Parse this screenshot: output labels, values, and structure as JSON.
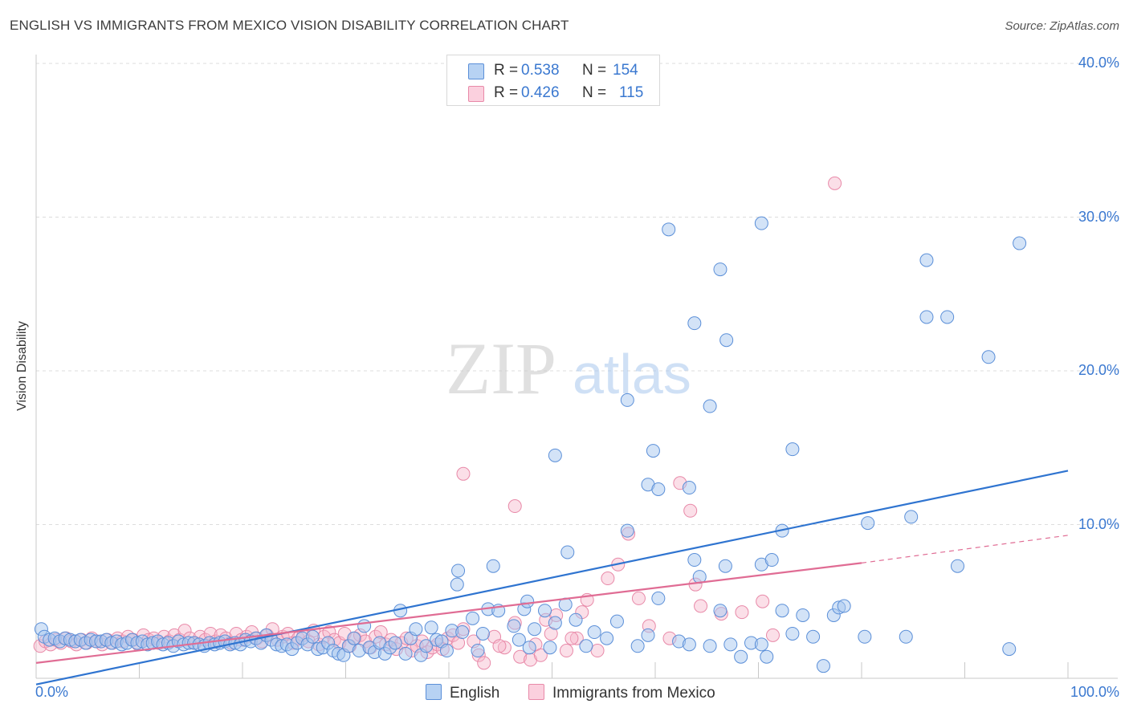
{
  "header": {
    "title": "ENGLISH VS IMMIGRANTS FROM MEXICO VISION DISABILITY CORRELATION CHART",
    "source": "Source: ZipAtlas.com"
  },
  "watermark": {
    "zip": "ZIP",
    "atlas": "atlas"
  },
  "legend_top": [
    {
      "r_label": "R =",
      "r_value": "0.538",
      "n_label": "N =",
      "n_value": "154"
    },
    {
      "r_label": "R =",
      "r_value": "0.426",
      "n_label": "N =",
      "n_value": "115"
    }
  ],
  "colors": {
    "english_fill": "#a8c8f0",
    "english_stroke": "#5b8fd8",
    "english_line": "#2f74d0",
    "mexico_fill": "#f7b8cc",
    "mexico_stroke": "#e889a8",
    "mexico_line": "#e06c94",
    "tick_text": "#3a78d0",
    "grid": "#dddddd"
  },
  "chart_data": {
    "type": "scatter",
    "title": "ENGLISH VS IMMIGRANTS FROM MEXICO VISION DISABILITY CORRELATION CHART",
    "xlabel": "",
    "ylabel": "Vision Disability",
    "xlim": [
      0,
      100
    ],
    "ylim": [
      0,
      40
    ],
    "x_tick_labels": [
      "0.0%",
      "100.0%"
    ],
    "y_ticks": [
      10,
      20,
      30,
      40
    ],
    "y_tick_labels": [
      "10.0%",
      "20.0%",
      "30.0%",
      "40.0%"
    ],
    "grid": true,
    "legend_position": "bottom",
    "series": [
      {
        "name": "English",
        "stats": {
          "R": 0.538,
          "N": 154
        },
        "trend": {
          "x0": 0,
          "y0": -0.4,
          "x1": 100,
          "y1": 13.5
        },
        "points": [
          [
            0.5,
            3.2
          ],
          [
            0.8,
            2.7
          ],
          [
            1.3,
            2.5
          ],
          [
            1.8,
            2.6
          ],
          [
            2.3,
            2.4
          ],
          [
            2.8,
            2.6
          ],
          [
            3.3,
            2.5
          ],
          [
            3.8,
            2.4
          ],
          [
            4.3,
            2.5
          ],
          [
            4.8,
            2.3
          ],
          [
            5.3,
            2.5
          ],
          [
            5.8,
            2.4
          ],
          [
            6.3,
            2.4
          ],
          [
            6.8,
            2.5
          ],
          [
            7.3,
            2.3
          ],
          [
            7.8,
            2.4
          ],
          [
            8.3,
            2.2
          ],
          [
            8.8,
            2.3
          ],
          [
            9.3,
            2.5
          ],
          [
            9.8,
            2.3
          ],
          [
            10.3,
            2.4
          ],
          [
            10.8,
            2.2
          ],
          [
            11.3,
            2.3
          ],
          [
            11.8,
            2.4
          ],
          [
            12.3,
            2.2
          ],
          [
            12.8,
            2.3
          ],
          [
            13.3,
            2.1
          ],
          [
            13.8,
            2.4
          ],
          [
            14.3,
            2.2
          ],
          [
            14.8,
            2.3
          ],
          [
            15.3,
            2.3
          ],
          [
            15.8,
            2.2
          ],
          [
            16.3,
            2.1
          ],
          [
            16.8,
            2.3
          ],
          [
            17.3,
            2.2
          ],
          [
            17.8,
            2.3
          ],
          [
            18.3,
            2.4
          ],
          [
            18.8,
            2.2
          ],
          [
            19.3,
            2.3
          ],
          [
            19.8,
            2.2
          ],
          [
            20.3,
            2.5
          ],
          [
            20.8,
            2.4
          ],
          [
            21.3,
            2.6
          ],
          [
            21.8,
            2.3
          ],
          [
            22.3,
            2.8
          ],
          [
            22.8,
            2.5
          ],
          [
            23.3,
            2.2
          ],
          [
            23.8,
            2.1
          ],
          [
            24.3,
            2.2
          ],
          [
            24.8,
            1.9
          ],
          [
            25.3,
            2.3
          ],
          [
            25.8,
            2.6
          ],
          [
            26.3,
            2.2
          ],
          [
            26.8,
            2.7
          ],
          [
            27.3,
            1.9
          ],
          [
            27.8,
            2.0
          ],
          [
            28.3,
            2.3
          ],
          [
            28.8,
            1.8
          ],
          [
            29.3,
            1.6
          ],
          [
            29.8,
            1.5
          ],
          [
            30.3,
            2.1
          ],
          [
            30.8,
            2.6
          ],
          [
            31.3,
            1.8
          ],
          [
            31.8,
            3.4
          ],
          [
            32.3,
            2.0
          ],
          [
            32.8,
            1.7
          ],
          [
            33.3,
            2.3
          ],
          [
            33.8,
            1.6
          ],
          [
            34.3,
            2.0
          ],
          [
            34.8,
            2.3
          ],
          [
            35.3,
            4.4
          ],
          [
            35.8,
            1.6
          ],
          [
            36.3,
            2.6
          ],
          [
            36.8,
            3.2
          ],
          [
            37.3,
            1.5
          ],
          [
            37.8,
            2.1
          ],
          [
            38.3,
            3.3
          ],
          [
            38.8,
            2.5
          ],
          [
            39.3,
            2.4
          ],
          [
            39.8,
            1.8
          ],
          [
            40.3,
            3.1
          ],
          [
            40.8,
            6.1
          ],
          [
            40.9,
            7.0
          ],
          [
            41.3,
            3.0
          ],
          [
            42.3,
            3.9
          ],
          [
            42.8,
            1.8
          ],
          [
            43.3,
            2.9
          ],
          [
            43.8,
            4.5
          ],
          [
            44.3,
            7.3
          ],
          [
            44.8,
            4.4
          ],
          [
            46.3,
            3.4
          ],
          [
            46.8,
            2.5
          ],
          [
            47.3,
            4.5
          ],
          [
            47.8,
            2.0
          ],
          [
            47.6,
            5.0
          ],
          [
            48.3,
            3.2
          ],
          [
            49.3,
            4.4
          ],
          [
            49.8,
            2.0
          ],
          [
            50.3,
            3.6
          ],
          [
            51.3,
            4.8
          ],
          [
            51.5,
            8.2
          ],
          [
            52.3,
            3.8
          ],
          [
            53.3,
            2.1
          ],
          [
            54.1,
            3.0
          ],
          [
            55.3,
            2.6
          ],
          [
            56.3,
            3.7
          ],
          [
            57.3,
            9.6
          ],
          [
            58.3,
            2.1
          ],
          [
            59.3,
            2.8
          ],
          [
            60.3,
            5.2
          ],
          [
            62.3,
            2.4
          ],
          [
            63.3,
            2.2
          ],
          [
            63.8,
            7.7
          ],
          [
            64.3,
            6.6
          ],
          [
            65.3,
            2.1
          ],
          [
            66.3,
            4.4
          ],
          [
            66.8,
            7.3
          ],
          [
            67.3,
            2.2
          ],
          [
            68.3,
            1.4
          ],
          [
            69.3,
            2.3
          ],
          [
            70.8,
            1.4
          ],
          [
            70.3,
            2.2
          ],
          [
            70.3,
            7.4
          ],
          [
            71.3,
            7.7
          ],
          [
            72.3,
            4.4
          ],
          [
            72.3,
            9.6
          ],
          [
            73.3,
            2.9
          ],
          [
            74.3,
            4.1
          ],
          [
            75.3,
            2.7
          ],
          [
            76.3,
            0.8
          ],
          [
            77.3,
            4.1
          ],
          [
            77.8,
            4.6
          ],
          [
            78.3,
            4.7
          ],
          [
            80.3,
            2.7
          ],
          [
            80.6,
            10.1
          ],
          [
            84.3,
            2.7
          ],
          [
            84.8,
            10.5
          ],
          [
            86.3,
            23.5
          ],
          [
            88.3,
            23.5
          ],
          [
            89.3,
            7.3
          ],
          [
            92.3,
            20.9
          ],
          [
            95.3,
            28.3
          ],
          [
            94.3,
            1.9
          ],
          [
            86.3,
            27.2
          ],
          [
            61.3,
            29.2
          ],
          [
            70.3,
            29.6
          ],
          [
            66.3,
            26.6
          ],
          [
            65.3,
            17.7
          ],
          [
            66.9,
            22.0
          ],
          [
            63.8,
            23.1
          ],
          [
            57.3,
            18.1
          ],
          [
            59.8,
            14.8
          ],
          [
            59.3,
            12.6
          ],
          [
            63.3,
            12.4
          ],
          [
            60.3,
            12.3
          ],
          [
            73.3,
            14.9
          ],
          [
            50.3,
            14.5
          ]
        ]
      },
      {
        "name": "Immigrants from Mexico",
        "stats": {
          "R": 0.426,
          "N": 115
        },
        "trend": {
          "x0": 0,
          "y0": 1.0,
          "x1": 80,
          "y1": 7.5,
          "dash_to_x": 100,
          "dash_to_y": 9.3
        },
        "points": [
          [
            0.4,
            2.1
          ],
          [
            0.9,
            2.4
          ],
          [
            1.4,
            2.2
          ],
          [
            1.9,
            2.5
          ],
          [
            2.4,
            2.3
          ],
          [
            2.9,
            2.6
          ],
          [
            3.4,
            2.4
          ],
          [
            3.9,
            2.2
          ],
          [
            4.4,
            2.5
          ],
          [
            4.9,
            2.3
          ],
          [
            5.4,
            2.6
          ],
          [
            5.9,
            2.4
          ],
          [
            6.4,
            2.2
          ],
          [
            6.9,
            2.5
          ],
          [
            7.4,
            2.3
          ],
          [
            7.9,
            2.6
          ],
          [
            8.4,
            2.4
          ],
          [
            8.9,
            2.7
          ],
          [
            9.4,
            2.5
          ],
          [
            9.9,
            2.2
          ],
          [
            10.4,
            2.8
          ],
          [
            10.9,
            2.5
          ],
          [
            11.4,
            2.6
          ],
          [
            11.9,
            2.3
          ],
          [
            12.4,
            2.7
          ],
          [
            12.9,
            2.4
          ],
          [
            13.4,
            2.8
          ],
          [
            13.9,
            2.5
          ],
          [
            14.4,
            3.1
          ],
          [
            14.9,
            2.6
          ],
          [
            15.4,
            2.3
          ],
          [
            15.9,
            2.7
          ],
          [
            16.4,
            2.5
          ],
          [
            16.9,
            2.9
          ],
          [
            17.4,
            2.4
          ],
          [
            17.9,
            2.8
          ],
          [
            18.4,
            2.6
          ],
          [
            18.9,
            2.3
          ],
          [
            19.4,
            2.9
          ],
          [
            19.9,
            2.5
          ],
          [
            20.4,
            2.7
          ],
          [
            20.9,
            3.0
          ],
          [
            21.4,
            2.6
          ],
          [
            21.9,
            2.4
          ],
          [
            22.4,
            2.8
          ],
          [
            22.9,
            3.2
          ],
          [
            23.4,
            2.5
          ],
          [
            23.9,
            2.7
          ],
          [
            24.4,
            2.9
          ],
          [
            24.9,
            2.3
          ],
          [
            25.4,
            2.6
          ],
          [
            25.9,
            2.8
          ],
          [
            26.4,
            2.4
          ],
          [
            26.9,
            3.1
          ],
          [
            27.4,
            2.2
          ],
          [
            27.9,
            2.7
          ],
          [
            28.4,
            3.0
          ],
          [
            28.9,
            2.5
          ],
          [
            29.4,
            2.3
          ],
          [
            29.9,
            2.9
          ],
          [
            30.4,
            2.1
          ],
          [
            30.9,
            2.6
          ],
          [
            31.4,
            2.8
          ],
          [
            31.9,
            2.4
          ],
          [
            32.4,
            2.0
          ],
          [
            32.9,
            2.7
          ],
          [
            33.4,
            3.0
          ],
          [
            33.9,
            2.2
          ],
          [
            34.4,
            2.5
          ],
          [
            34.9,
            1.9
          ],
          [
            35.4,
            2.3
          ],
          [
            35.9,
            2.6
          ],
          [
            36.4,
            1.8
          ],
          [
            36.9,
            2.1
          ],
          [
            37.4,
            2.4
          ],
          [
            37.9,
            1.7
          ],
          [
            38.4,
            2.0
          ],
          [
            38.9,
            2.2
          ],
          [
            39.4,
            1.9
          ],
          [
            39.9,
            2.6
          ],
          [
            40.4,
            2.8
          ],
          [
            40.9,
            2.3
          ],
          [
            41.4,
            3.2
          ],
          [
            42.4,
            2.4
          ],
          [
            42.9,
            1.5
          ],
          [
            43.4,
            1.0
          ],
          [
            44.4,
            2.7
          ],
          [
            45.4,
            2.0
          ],
          [
            46.4,
            3.6
          ],
          [
            46.9,
            1.4
          ],
          [
            47.9,
            1.2
          ],
          [
            48.4,
            2.2
          ],
          [
            49.4,
            3.8
          ],
          [
            49.9,
            2.9
          ],
          [
            50.4,
            4.1
          ],
          [
            51.4,
            1.8
          ],
          [
            52.4,
            2.6
          ],
          [
            52.9,
            4.3
          ],
          [
            53.4,
            5.1
          ],
          [
            54.4,
            1.8
          ],
          [
            55.4,
            6.5
          ],
          [
            56.4,
            7.4
          ],
          [
            57.4,
            9.4
          ],
          [
            58.4,
            5.2
          ],
          [
            59.4,
            3.4
          ],
          [
            61.4,
            2.6
          ],
          [
            62.4,
            12.7
          ],
          [
            63.4,
            10.9
          ],
          [
            63.9,
            6.1
          ],
          [
            64.4,
            4.7
          ],
          [
            66.4,
            4.2
          ],
          [
            68.4,
            4.3
          ],
          [
            70.4,
            5.0
          ],
          [
            71.4,
            2.8
          ],
          [
            77.4,
            32.2
          ],
          [
            41.4,
            13.3
          ],
          [
            46.4,
            11.2
          ],
          [
            48.9,
            1.5
          ],
          [
            44.9,
            2.1
          ],
          [
            51.9,
            2.6
          ]
        ]
      }
    ]
  },
  "legend_bottom": [
    {
      "label": "English"
    },
    {
      "label": "Immigrants from Mexico"
    }
  ]
}
